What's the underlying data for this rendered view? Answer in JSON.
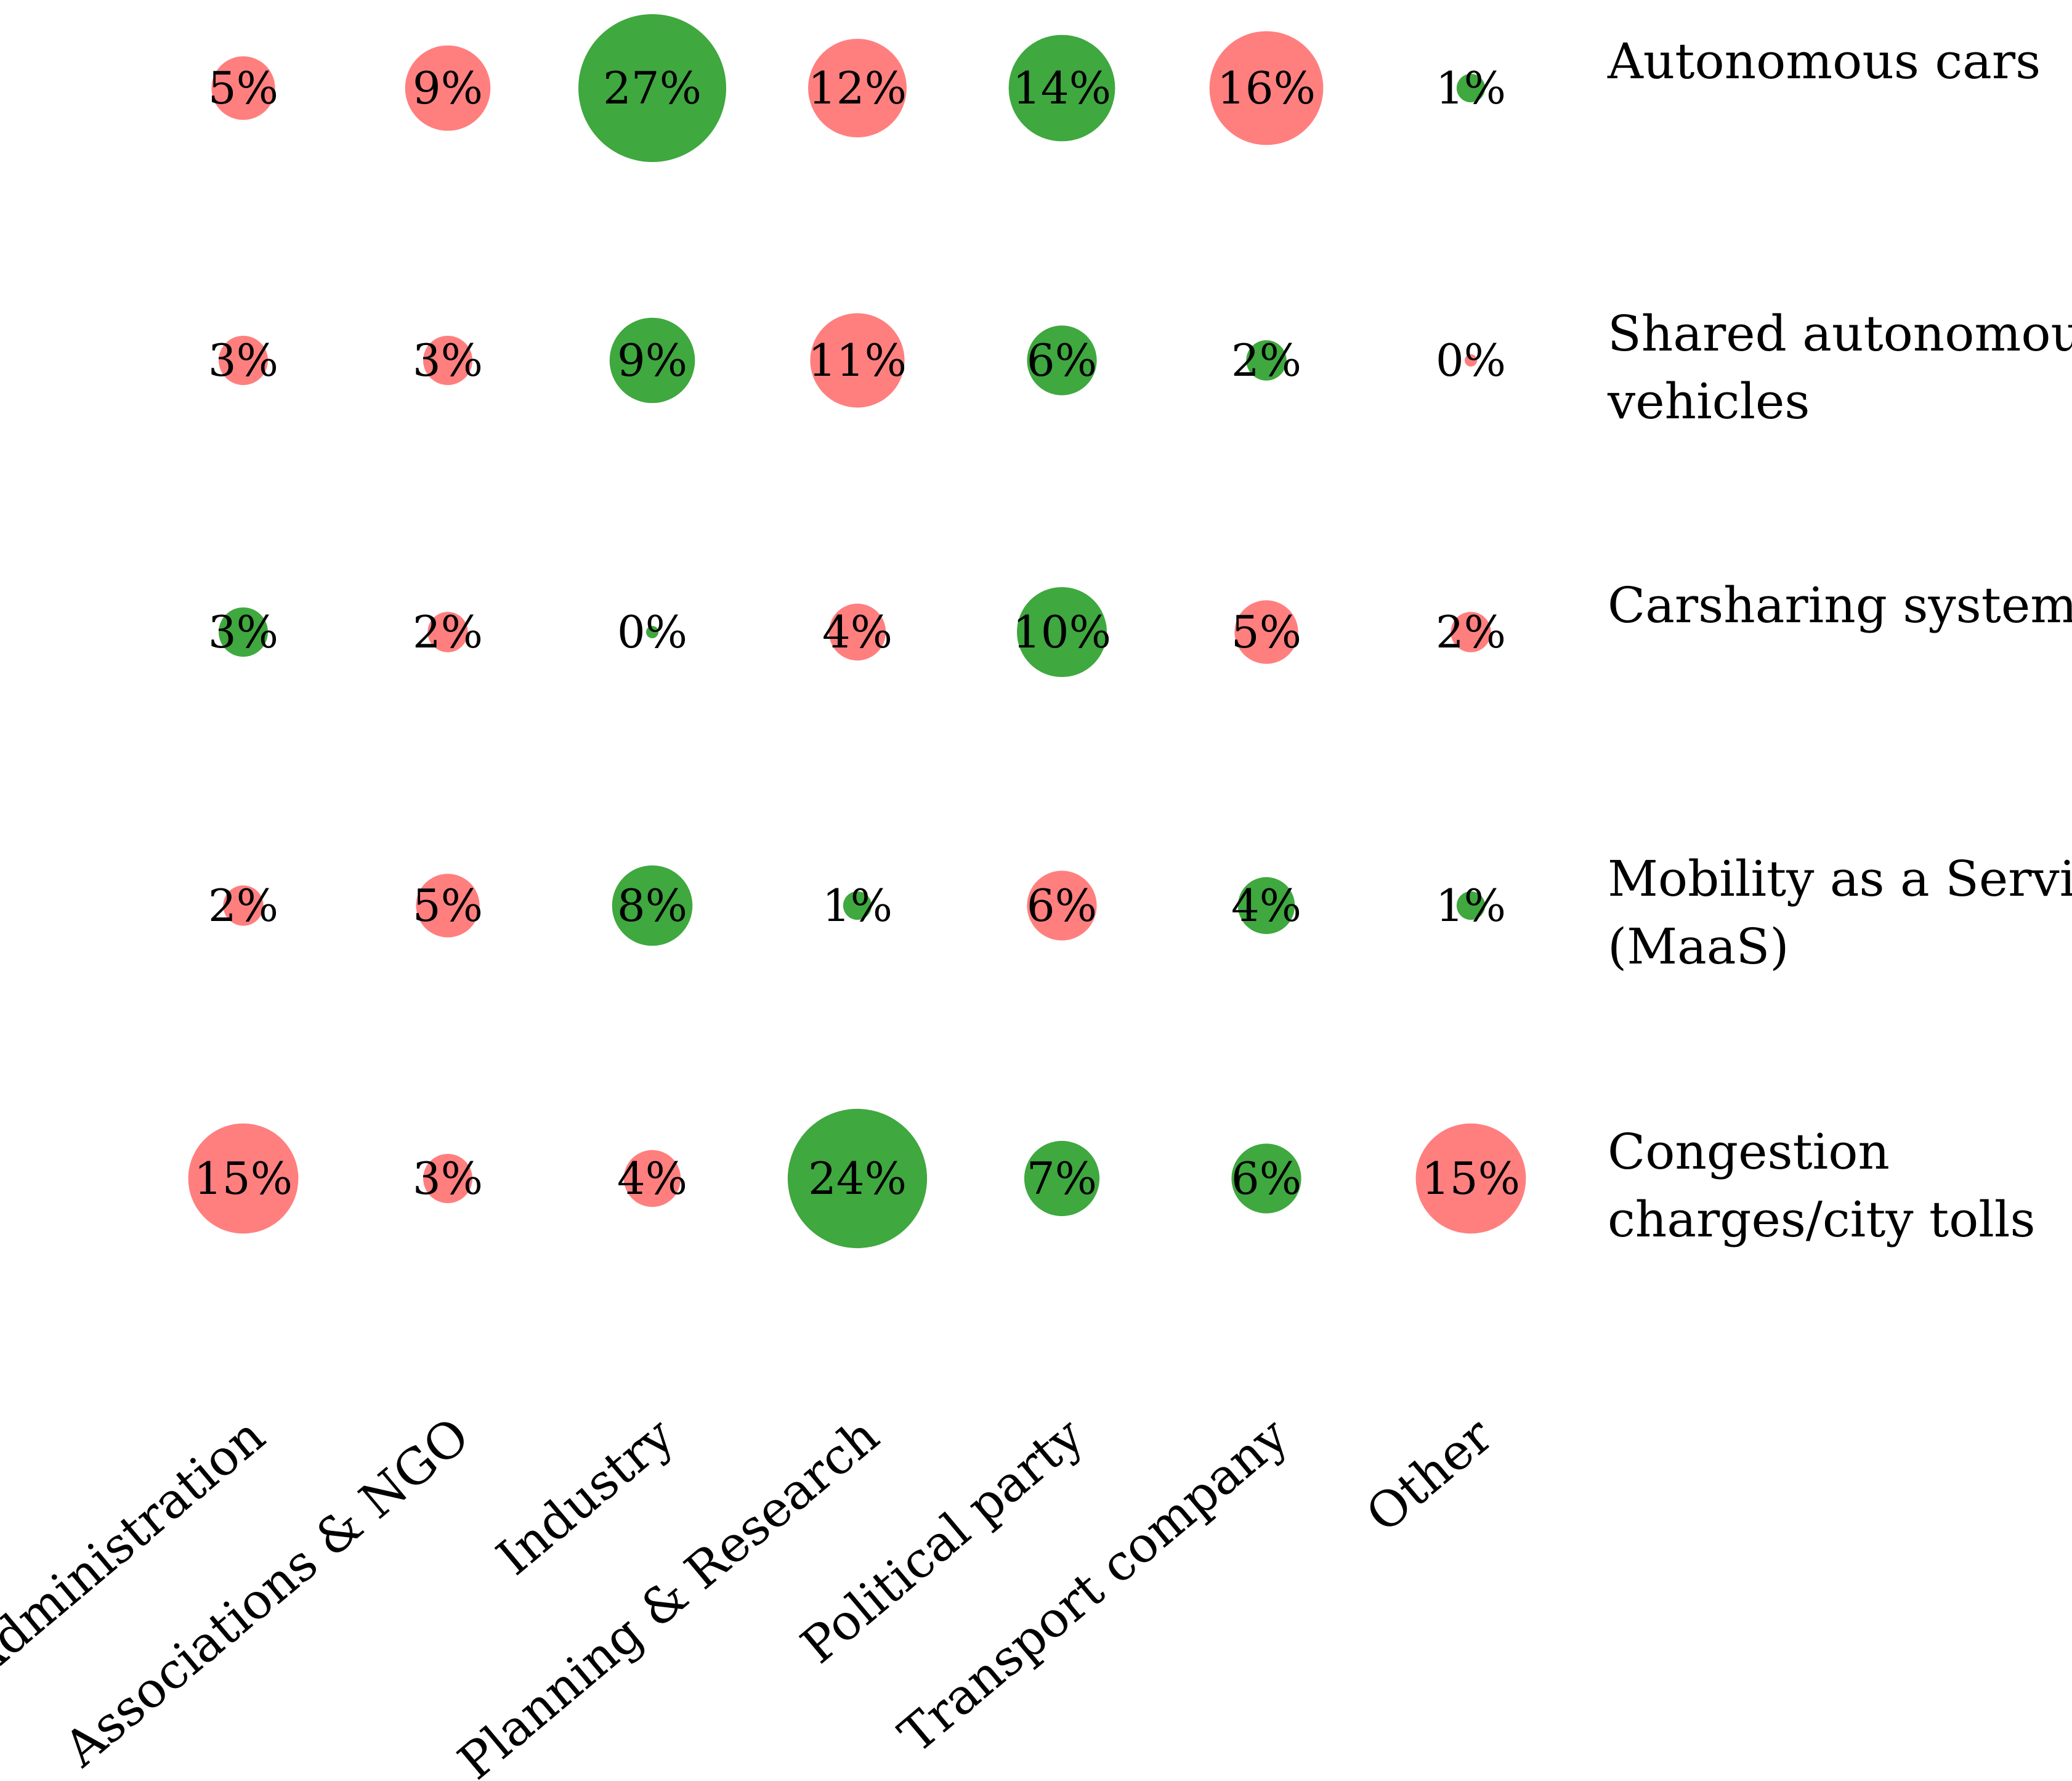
{
  "chart_data": {
    "type": "bubble-matrix",
    "columns": [
      "Administration",
      "Associations & NGO",
      "Industry",
      "Planning & Research",
      "Political party",
      "Transport company",
      "Other"
    ],
    "rows": [
      {
        "label_lines": [
          "Autonomous cars"
        ],
        "values": [
          5,
          9,
          27,
          12,
          14,
          16,
          1
        ],
        "labels": [
          "5%",
          "9%",
          "27%",
          "12%",
          "14%",
          "16%",
          "1%"
        ],
        "colors": [
          "red",
          "red",
          "green",
          "red",
          "green",
          "red",
          "green"
        ]
      },
      {
        "label_lines": [
          "Shared autonomous",
          "vehicles"
        ],
        "values": [
          3,
          3,
          9,
          11,
          6,
          2,
          0
        ],
        "labels": [
          "3%",
          "3%",
          "9%",
          "11%",
          "6%",
          "2%",
          "0%"
        ],
        "colors": [
          "red",
          "red",
          "green",
          "red",
          "green",
          "green",
          "red"
        ]
      },
      {
        "label_lines": [
          "Carsharing systems"
        ],
        "values": [
          3,
          2,
          0,
          4,
          10,
          5,
          2
        ],
        "labels": [
          "3%",
          "2%",
          "0%",
          "4%",
          "10%",
          "5%",
          "2%"
        ],
        "colors": [
          "green",
          "red",
          "green",
          "red",
          "green",
          "red",
          "red"
        ]
      },
      {
        "label_lines": [
          "Mobility as a Service",
          "(MaaS)"
        ],
        "values": [
          2,
          5,
          8,
          1,
          6,
          4,
          1
        ],
        "labels": [
          "2%",
          "5%",
          "8%",
          "1%",
          "6%",
          "4%",
          "1%"
        ],
        "colors": [
          "red",
          "red",
          "green",
          "green",
          "red",
          "green",
          "green"
        ]
      },
      {
        "label_lines": [
          "Congestion",
          "charges/city tolls"
        ],
        "values": [
          15,
          3,
          4,
          24,
          7,
          6,
          15
        ],
        "labels": [
          "15%",
          "3%",
          "4%",
          "24%",
          "7%",
          "6%",
          "15%"
        ],
        "colors": [
          "red",
          "red",
          "red",
          "green",
          "green",
          "green",
          "red"
        ]
      }
    ],
    "palette": {
      "red": "#ff7f7f",
      "green": "#3fa83f"
    }
  }
}
